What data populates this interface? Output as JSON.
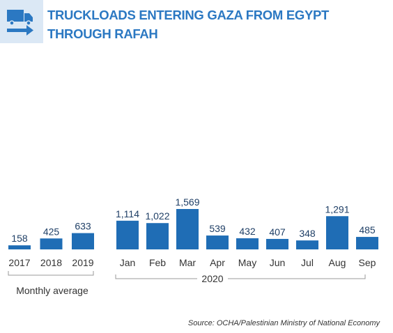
{
  "chart_data": {
    "type": "bar",
    "title": "TRUCKLOADS ENTERING GAZA FROM EGYPT THROUGH RAFAH",
    "color": "#1f6db5",
    "groups": [
      {
        "label": "Monthly average",
        "categories": [
          "2017",
          "2018",
          "2019"
        ],
        "values": [
          158,
          425,
          633
        ],
        "value_labels": [
          "158",
          "425",
          "633"
        ]
      },
      {
        "label": "2020",
        "categories": [
          "Jan",
          "Feb",
          "Mar",
          "Apr",
          "May",
          "Jun",
          "Jul",
          "Aug",
          "Sep"
        ],
        "values": [
          1114,
          1022,
          1569,
          539,
          432,
          407,
          348,
          1291,
          485
        ],
        "value_labels": [
          "1,114",
          "1,022",
          "1,569",
          "539",
          "432",
          "407",
          "348",
          "1,291",
          "485"
        ]
      }
    ],
    "source": "Source: OCHA/Palestinian Ministry of National Economy"
  }
}
